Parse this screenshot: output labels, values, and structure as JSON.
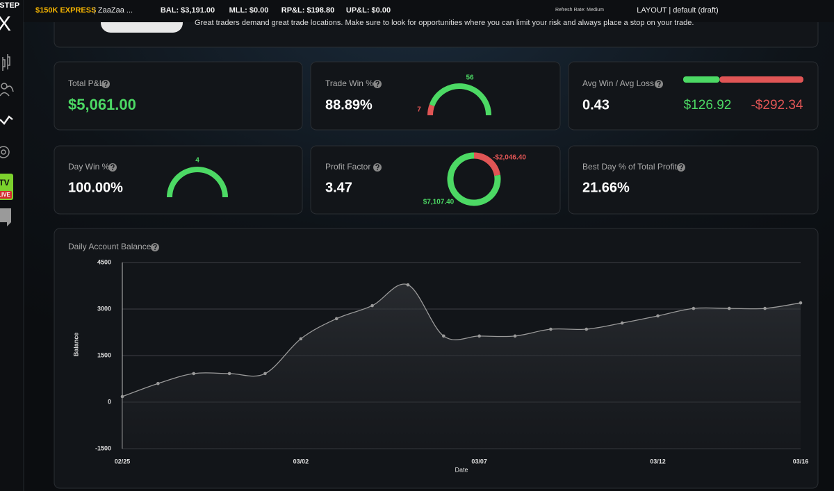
{
  "sidebar": {
    "logo": "PSTEP",
    "logo_mark": "X",
    "tv": "TV",
    "live": "LIVE"
  },
  "topbar": {
    "account": "$150K EXPRESS",
    "user": "ZaaZaa ...",
    "bal": "BAL: $3,191.00",
    "mll": "MLL: $0.00",
    "rpl": "RP&L: $198.80",
    "upl": "UP&L: $0.00",
    "refresh": "Refresh Rate: Medium",
    "layout": "LAYOUT | default (draft)"
  },
  "banner": {
    "text": "Great traders demand great trade locations. Make sure to look for opportunities where you can limit your risk and always place a stop on your trade."
  },
  "cards": {
    "total_pl": {
      "label": "Total P&L",
      "value": "$5,061.00"
    },
    "trade_win": {
      "label": "Trade Win %",
      "value": "88.89%",
      "wins": 56,
      "losses": 7
    },
    "avg_win_loss": {
      "label": "Avg Win / Avg Loss",
      "value": "0.43",
      "avg_win": {
        "value": 126.92,
        "label": "$126.92"
      },
      "avg_loss": {
        "value": -292.34,
        "label": "-$292.34"
      }
    },
    "day_win": {
      "label": "Day Win %",
      "value": "100.00%",
      "wins": 4
    },
    "profit_factor": {
      "label": "Profit Factor",
      "value": "3.47",
      "gross_profit": {
        "value": 7107.4,
        "label": "$7,107.40"
      },
      "gross_loss": {
        "value": -2046.4,
        "label": "-$2,046.40"
      }
    },
    "best_day": {
      "label": "Best Day % of Total Profit",
      "value": "21.66%"
    }
  },
  "chart_data": {
    "type": "line",
    "title": "Daily Account Balance",
    "x_label": "Date",
    "y_label": "Balance",
    "categories": [
      "02/25",
      null,
      null,
      null,
      null,
      "03/02",
      null,
      null,
      null,
      null,
      "03/07",
      null,
      null,
      null,
      null,
      "03/12",
      null,
      null,
      null,
      "03/16"
    ],
    "values": [
      180,
      600,
      920,
      920,
      920,
      2040,
      2690,
      3110,
      3780,
      2130,
      2130,
      2130,
      2350,
      2350,
      2550,
      2780,
      3020,
      3020,
      3020,
      3200
    ],
    "color": "#9a9a9a",
    "ylim": [
      -1500,
      4500
    ],
    "yticks": [
      -1500,
      0,
      1500,
      3000,
      4500
    ],
    "grid": true
  }
}
